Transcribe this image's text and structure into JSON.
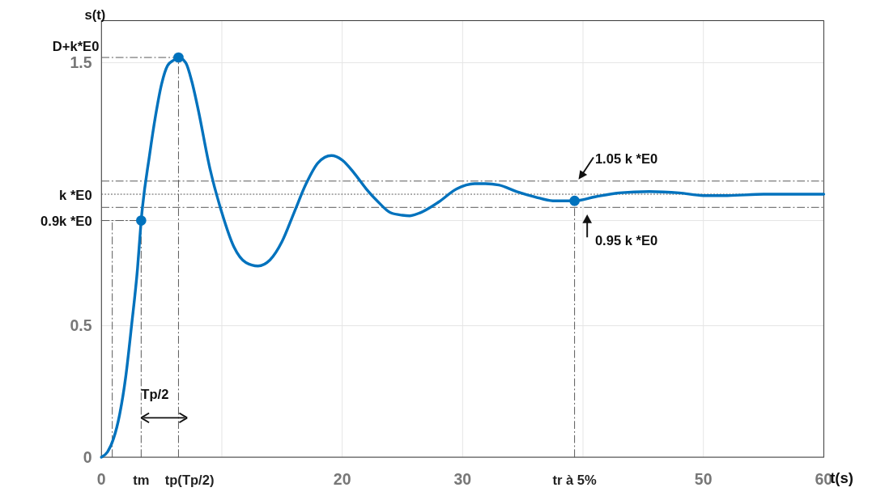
{
  "chart_data": {
    "type": "line",
    "xlabel": "t(s)",
    "ylabel": "s(t)",
    "xlim": [
      0,
      60
    ],
    "ylim": [
      0,
      1.66
    ],
    "xticks": [
      0,
      {
        "value": 10,
        "label": null
      },
      20,
      30,
      {
        "value": 40,
        "label": null
      },
      50,
      60
    ],
    "yticks": [
      0,
      0.5,
      {
        "value": 0.9,
        "label": "0.9k *E0"
      },
      {
        "value": 1,
        "label": "k *E0"
      },
      1.5
    ],
    "grid": true,
    "series": [
      {
        "type": "line",
        "color": "#0072bd",
        "x": [
          0,
          0.5,
          1,
          1.5,
          2,
          2.5,
          3,
          3.3,
          4,
          4.5,
          5,
          5.5,
          6,
          6.4,
          7,
          7.5,
          8,
          9,
          10,
          11,
          12,
          13,
          14,
          15,
          16,
          17,
          18,
          19.1,
          20,
          21,
          22,
          23,
          24,
          25,
          25.6,
          26.5,
          28,
          29.5,
          31,
          31.9,
          33,
          34.5,
          36,
          37.5,
          39.3,
          41,
          43,
          45.5,
          48,
          50,
          52,
          55,
          58,
          60
        ],
        "values": [
          0,
          0.02,
          0.07,
          0.16,
          0.3,
          0.5,
          0.72,
          0.9,
          1.15,
          1.3,
          1.42,
          1.49,
          1.51,
          1.52,
          1.5,
          1.43,
          1.33,
          1.1,
          0.93,
          0.8,
          0.74,
          0.727,
          0.75,
          0.82,
          0.93,
          1.04,
          1.12,
          1.147,
          1.13,
          1.08,
          1.02,
          0.97,
          0.93,
          0.92,
          0.918,
          0.93,
          0.97,
          1.02,
          1.04,
          1.04,
          1.035,
          1.01,
          0.99,
          0.975,
          0.975,
          0.99,
          1.005,
          1.01,
          1.005,
          0.995,
          0.995,
          1,
          1,
          1
        ]
      },
      {
        "type": "line",
        "color": "#555555",
        "line_style": "dashed",
        "x": [
          0,
          3.3
        ],
        "values": [
          0.9,
          0.9
        ]
      },
      {
        "type": "scatter",
        "color": "#0072bd",
        "marker": "circle",
        "x": [
          3.3,
          6.4,
          39.3
        ],
        "values": [
          0.9,
          1.52,
          0.975
        ]
      }
    ],
    "ref_lines": [
      {
        "axis": "x",
        "value": 0.9,
        "line_style": "dashed",
        "color": "#555555"
      },
      {
        "axis": "x",
        "value": 3.3,
        "label": "tm",
        "line_style": "dashed",
        "color": "#555555"
      },
      {
        "axis": "x",
        "value": 6.4,
        "label": "tp(Tp/2)",
        "line_style": "dashed",
        "color": "#555555"
      },
      {
        "axis": "x",
        "value": 39.3,
        "label": "tr à 5%",
        "line_style": "dashed",
        "color": "#555555"
      },
      {
        "axis": "y",
        "value": 1.52,
        "label": "D+k*E0",
        "line_style": "dashed",
        "color": "#555555"
      },
      {
        "axis": "y",
        "value": 1.05,
        "line_style": "dashed",
        "color": "#555555"
      },
      {
        "axis": "y",
        "value": 1,
        "line_style": "dotted",
        "color": "#555555"
      },
      {
        "axis": "y",
        "value": 0.95,
        "line_style": "dashed",
        "color": "#555555"
      }
    ],
    "annotations": [
      "Tp/2",
      {
        "text": "1.05 k *E0",
        "x": 39.3,
        "y": 1.05
      },
      {
        "text": "0.95 k *E0",
        "x": 39.3,
        "y": 0.95
      }
    ]
  }
}
